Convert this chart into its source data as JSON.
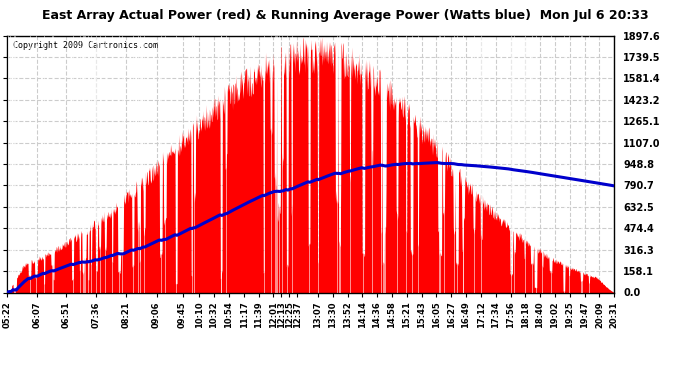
{
  "title": "East Array Actual Power (red) & Running Average Power (Watts blue)  Mon Jul 6 20:33",
  "copyright": "Copyright 2009 Cartronics.com",
  "y_ticks": [
    0.0,
    158.1,
    316.3,
    474.4,
    632.5,
    790.7,
    948.8,
    1107.0,
    1265.1,
    1423.2,
    1581.4,
    1739.5,
    1897.6
  ],
  "x_labels": [
    "05:22",
    "06:07",
    "06:51",
    "07:36",
    "08:21",
    "09:06",
    "09:45",
    "10:10",
    "10:32",
    "10:54",
    "11:17",
    "11:39",
    "12:01",
    "12:13",
    "12:25",
    "12:37",
    "13:07",
    "13:30",
    "13:52",
    "14:14",
    "14:36",
    "14:58",
    "15:21",
    "15:43",
    "16:05",
    "16:27",
    "16:49",
    "17:12",
    "17:34",
    "17:56",
    "18:18",
    "18:40",
    "19:02",
    "19:25",
    "19:47",
    "20:09",
    "20:31"
  ],
  "bg_color": "#ffffff",
  "plot_bg_color": "#ffffff",
  "grid_color": "#cccccc",
  "red_color": "#ff0000",
  "blue_color": "#0000cc",
  "title_bg_color": "#d0d0d0"
}
